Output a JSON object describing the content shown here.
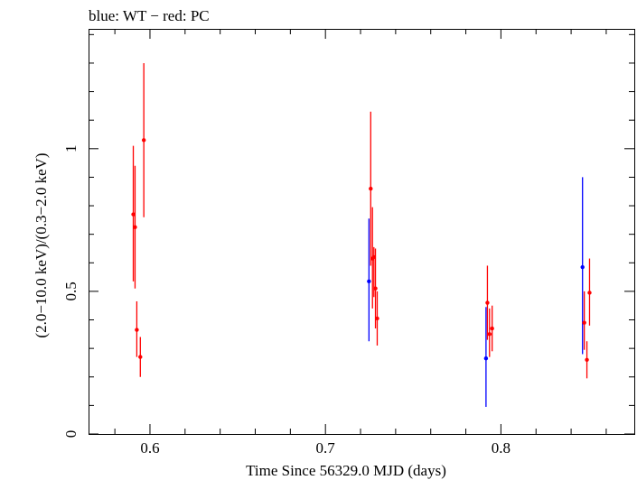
{
  "header": {
    "title": "blue: WT − red: PC"
  },
  "colors": {
    "wt": "#0000ff",
    "pc": "#ff0000",
    "axis": "#000000"
  },
  "chart_data": {
    "type": "scatter",
    "title": "blue: WT − red: PC",
    "xlabel": "Time Since 56329.0 MJD (days)",
    "ylabel": "(2.0−10.0 keV)/(0.3−2.0 keV)",
    "xlim": [
      0.565,
      0.876
    ],
    "ylim": [
      0,
      1.42
    ],
    "xticks": [
      0.6,
      0.7,
      0.8
    ],
    "xtick_labels": [
      "0.6",
      "0.7",
      "0.8"
    ],
    "yticks": [
      0,
      0.5,
      1
    ],
    "ytick_labels": [
      "0",
      "0.5",
      "1"
    ],
    "grid": false,
    "series": [
      {
        "name": "WT",
        "color": "#0000ff",
        "points": [
          {
            "x": 0.7248,
            "y": 0.535,
            "ylo": 0.325,
            "yhi": 0.755
          },
          {
            "x": 0.7915,
            "y": 0.265,
            "ylo": 0.095,
            "yhi": 0.445
          },
          {
            "x": 0.8465,
            "y": 0.585,
            "ylo": 0.28,
            "yhi": 0.9
          }
        ]
      },
      {
        "name": "PC",
        "color": "#ff0000",
        "points": [
          {
            "x": 0.5905,
            "y": 0.77,
            "ylo": 0.535,
            "yhi": 1.01
          },
          {
            "x": 0.5915,
            "y": 0.725,
            "ylo": 0.51,
            "yhi": 0.94
          },
          {
            "x": 0.5925,
            "y": 0.365,
            "ylo": 0.27,
            "yhi": 0.465
          },
          {
            "x": 0.5945,
            "y": 0.27,
            "ylo": 0.2,
            "yhi": 0.34
          },
          {
            "x": 0.5965,
            "y": 1.03,
            "ylo": 0.76,
            "yhi": 1.3
          },
          {
            "x": 0.7258,
            "y": 0.86,
            "ylo": 0.59,
            "yhi": 1.13
          },
          {
            "x": 0.7268,
            "y": 0.615,
            "ylo": 0.44,
            "yhi": 0.795
          },
          {
            "x": 0.7276,
            "y": 0.62,
            "ylo": 0.48,
            "yhi": 0.655
          },
          {
            "x": 0.7285,
            "y": 0.51,
            "ylo": 0.37,
            "yhi": 0.65
          },
          {
            "x": 0.7295,
            "y": 0.405,
            "ylo": 0.31,
            "yhi": 0.5
          },
          {
            "x": 0.7923,
            "y": 0.46,
            "ylo": 0.33,
            "yhi": 0.59
          },
          {
            "x": 0.7935,
            "y": 0.35,
            "ylo": 0.27,
            "yhi": 0.44
          },
          {
            "x": 0.795,
            "y": 0.37,
            "ylo": 0.29,
            "yhi": 0.45
          },
          {
            "x": 0.8475,
            "y": 0.39,
            "ylo": 0.295,
            "yhi": 0.5
          },
          {
            "x": 0.849,
            "y": 0.26,
            "ylo": 0.195,
            "yhi": 0.325
          },
          {
            "x": 0.8505,
            "y": 0.495,
            "ylo": 0.38,
            "yhi": 0.615
          }
        ]
      }
    ]
  }
}
